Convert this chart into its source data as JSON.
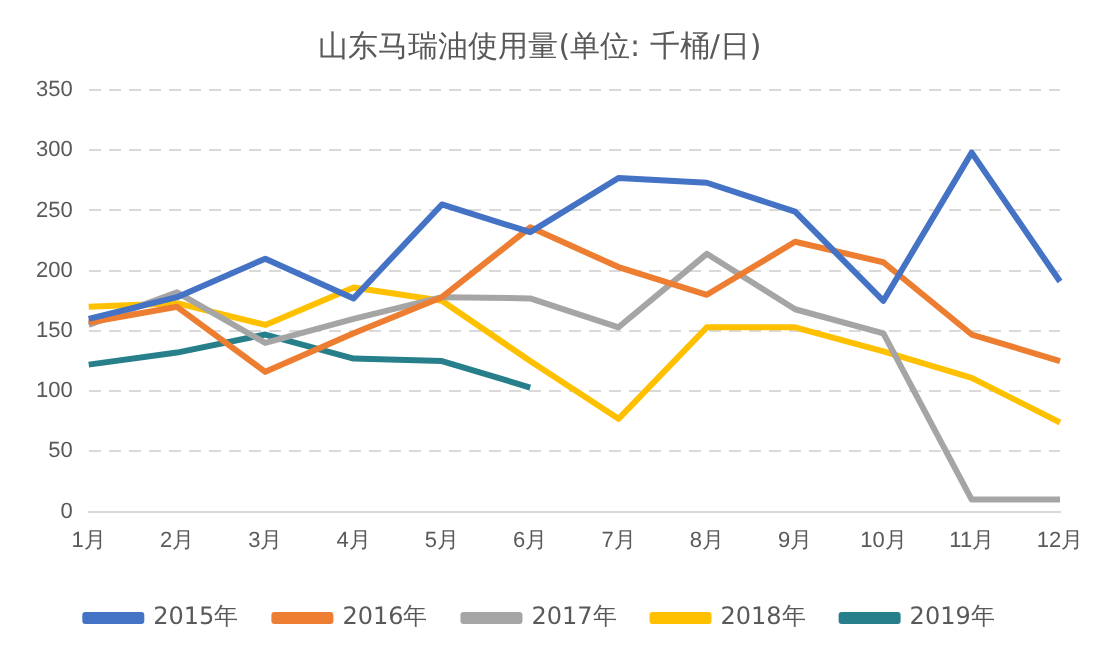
{
  "chart_data": {
    "type": "line",
    "title": "山东马瑞油使用量(单位: 千桶/日)",
    "categories": [
      "1月",
      "2月",
      "3月",
      "4月",
      "5月",
      "6月",
      "7月",
      "8月",
      "9月",
      "10月",
      "11月",
      "12月"
    ],
    "series": [
      {
        "name": "2015年",
        "color": "#4472c4",
        "values": [
          160,
          178,
          210,
          177,
          255,
          232,
          277,
          273,
          249,
          175,
          298,
          191
        ]
      },
      {
        "name": "2016年",
        "color": "#ed7d31",
        "values": [
          157,
          170,
          116,
          148,
          178,
          236,
          203,
          180,
          224,
          207,
          147,
          125
        ]
      },
      {
        "name": "2017年",
        "color": "#a5a5a5",
        "values": [
          155,
          182,
          140,
          160,
          178,
          177,
          153,
          214,
          168,
          148,
          10,
          10
        ]
      },
      {
        "name": "2018年",
        "color": "#ffc000",
        "values": [
          170,
          173,
          155,
          186,
          175,
          125,
          77,
          153,
          153,
          133,
          111,
          74
        ]
      },
      {
        "name": "2019年",
        "color": "#267f8a",
        "values": [
          122,
          132,
          147,
          127,
          125,
          103,
          null,
          null,
          null,
          null,
          null,
          null
        ]
      }
    ],
    "ylim": [
      0,
      350
    ],
    "yticks": [
      0,
      50,
      100,
      150,
      200,
      250,
      300,
      350
    ],
    "grid": "y",
    "line_style": "solid",
    "marker": "none",
    "legend": "bottom"
  }
}
